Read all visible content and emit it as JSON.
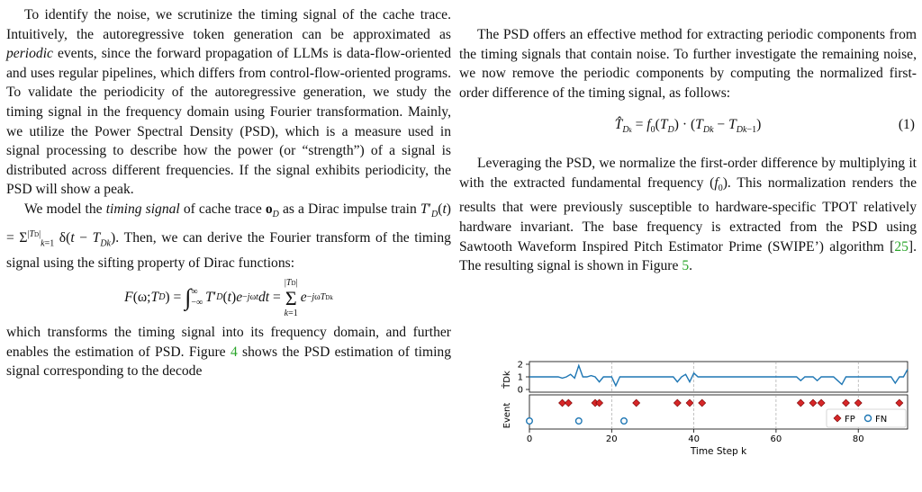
{
  "left": {
    "para1": "To identify the noise, we scrutinize the timing signal of the cache trace. Intuitively, the autoregressive token generation can be approximated as periodic events, since the forward propagation of LLMs is data-flow-oriented and uses regular pipelines, which differs from control-flow-oriented programs. To validate the periodicity of the autoregressive generation, we study the timing signal in the frequency domain using Fourier transformation. Mainly, we utilize the Power Spectral Density (PSD), which is a measure used in signal processing to describe how the power (or “strength”) of a signal is distributed across different frequencies. If the signal exhibits periodicity, the PSD will show a peak.",
    "para2_a": "We model the ",
    "para2_em": "timing signal",
    "para2_b": " of cache trace o",
    "para2_c": " as a Dirac impulse train T′D(t) = Σ δ(t − TDk). Then, we can derive the Fourier transform of the timing signal using the sifting property of Dirac functions:",
    "equation": "F(ω;TD) = ∫ T′D(t) e^(−jωt) dt = Σ e^(−jωTDk)",
    "para3_a": "which transforms the timing signal into its frequency domain, and further enables the estimation of PSD. Figure ",
    "fig4_ref": "4",
    "para3_b": " shows the PSD estimation of timing signal corresponding to the decode"
  },
  "right": {
    "para1": "The PSD offers an effective method for extracting periodic components from the timing signals that contain noise. To further investigate the remaining noise, we now remove the periodic components by computing the normalized first-order difference of the timing signal, as follows:",
    "equation": "T̂Dk = f0(TD) · (TDk − TDk−1)",
    "eq_number": "(1)",
    "para2_a": "Leveraging the PSD, we normalize the first-order difference by multiplying it with the extracted fundamental frequency (f0). This normalization renders the results that were previously susceptible to hardware-specific TPOT relatively hardware invariant. The base frequency is extracted from the PSD using Sawtooth Waveform Inspired Pitch Estimator Prime (SWIPE’) algorithm [",
    "ref25": "25",
    "para2_b": "]. The resulting signal is shown in Figure ",
    "fig5_ref": "5",
    "para2_c": "."
  },
  "figure": {
    "top_ylabel": "T̂Dk",
    "bottom_ylabel": "Event",
    "xlabel": "Time Step k",
    "top_yticks": [
      "2",
      "1",
      "0"
    ],
    "xticks": [
      "0",
      "20",
      "40",
      "60",
      "80"
    ],
    "legend": {
      "fp": "FP",
      "fn": "FN"
    },
    "colors": {
      "line": "#1f77b4",
      "fp": "#d62728",
      "fn": "#1f77b4"
    }
  },
  "chart_data": {
    "type": "line",
    "xlabel": "Time Step k",
    "xlim": [
      0,
      92
    ],
    "top": {
      "ylabel": "T̂Dk",
      "ylim": [
        0,
        2
      ],
      "x": [
        0,
        1,
        2,
        3,
        4,
        5,
        6,
        7,
        8,
        9,
        10,
        11,
        12,
        13,
        14,
        15,
        16,
        17,
        18,
        19,
        20,
        21,
        22,
        23,
        24,
        25,
        26,
        27,
        28,
        29,
        30,
        31,
        32,
        33,
        34,
        35,
        36,
        37,
        38,
        39,
        40,
        41,
        42,
        43,
        44,
        45,
        46,
        47,
        48,
        49,
        50,
        51,
        52,
        53,
        54,
        55,
        56,
        57,
        58,
        59,
        60,
        61,
        62,
        63,
        64,
        65,
        66,
        67,
        68,
        69,
        70,
        71,
        72,
        73,
        74,
        75,
        76,
        77,
        78,
        79,
        80,
        81,
        82,
        83,
        84,
        85,
        86,
        87,
        88,
        89,
        90,
        91,
        92
      ],
      "y": [
        1.0,
        1.0,
        1.0,
        1.0,
        1.0,
        1.0,
        1.0,
        1.0,
        0.9,
        1.0,
        1.2,
        0.9,
        1.9,
        1.0,
        1.0,
        1.1,
        1.0,
        0.6,
        1.0,
        1.0,
        1.0,
        0.3,
        1.0,
        1.0,
        1.0,
        1.0,
        1.0,
        1.0,
        1.0,
        1.0,
        1.0,
        1.0,
        1.0,
        1.0,
        1.0,
        1.0,
        0.6,
        1.0,
        1.2,
        0.6,
        1.3,
        1.0,
        1.0,
        1.0,
        1.0,
        1.0,
        1.0,
        1.0,
        1.0,
        1.0,
        1.0,
        1.0,
        1.0,
        1.0,
        1.0,
        1.0,
        1.0,
        1.0,
        1.0,
        1.0,
        1.0,
        1.0,
        1.0,
        1.0,
        1.0,
        1.0,
        0.7,
        1.0,
        1.0,
        1.0,
        0.7,
        1.0,
        1.0,
        1.0,
        1.0,
        0.7,
        0.4,
        1.0,
        1.0,
        1.0,
        1.0,
        1.0,
        1.0,
        1.0,
        1.0,
        1.0,
        1.0,
        1.0,
        1.0,
        0.5,
        1.0,
        1.0,
        1.6
      ],
      "yticks": [
        0,
        1,
        2
      ]
    },
    "bottom": {
      "ylabel": "Event",
      "series": [
        {
          "name": "FP",
          "marker": "diamond",
          "x": [
            8,
            9.5,
            16,
            17,
            26,
            36,
            39,
            42,
            66,
            69,
            71,
            77,
            80,
            90
          ],
          "y": [
            1,
            1,
            1,
            1,
            1,
            1,
            1,
            1,
            1,
            1,
            1,
            1,
            1,
            1
          ]
        },
        {
          "name": "FP",
          "marker": "diamond",
          "x": [
            75.5
          ],
          "y": [
            0
          ]
        },
        {
          "name": "FN",
          "marker": "circle",
          "x": [
            0,
            12,
            23
          ],
          "y": [
            0,
            0,
            0
          ]
        }
      ],
      "legend_position": "lower-right"
    },
    "xticks": [
      0,
      20,
      40,
      60,
      80
    ],
    "grid": "vertical dashed"
  }
}
